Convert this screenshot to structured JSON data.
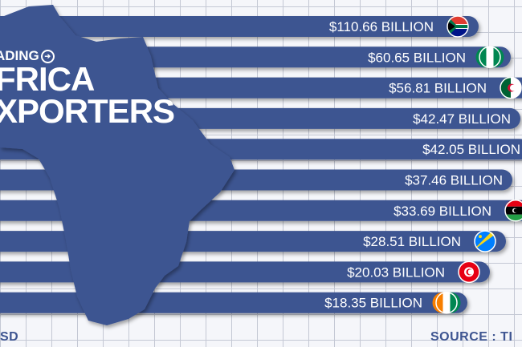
{
  "title": {
    "kicker": "ADING",
    "line1": "FRICA",
    "line2": "XPORTERS"
  },
  "footer": {
    "unit_label": "SD",
    "source_label": "SOURCE : TI"
  },
  "colors": {
    "bar": "#3e5591",
    "map": "#3e5591",
    "background": "#f5f6fa",
    "grid": "#c4c8d4",
    "text": "#ffffff"
  },
  "chart_data": {
    "type": "bar",
    "orientation": "horizontal",
    "values": [
      110.66,
      60.65,
      56.81,
      42.47,
      42.05,
      37.46,
      33.69,
      28.51,
      20.03,
      18.35
    ],
    "value_labels": [
      "$110.66 BILLION",
      "$60.65 BILLION",
      "$56.81 BILLION",
      "$42.47 BILLION",
      "$42.05 BILLION",
      "$37.46 BILLION",
      "$33.69 BILLION",
      "$28.51 BILLION",
      "$20.03 BILLION",
      "$18.35 BILLION"
    ],
    "flag_icons": [
      "south-africa-flag-icon",
      "nigeria-flag-icon",
      "algeria-flag-icon",
      "",
      "",
      "",
      "libya-flag-icon",
      "dr-congo-flag-icon",
      "tunisia-flag-icon",
      "ivory-coast-flag-icon"
    ],
    "unit": "USD",
    "grid": true
  }
}
